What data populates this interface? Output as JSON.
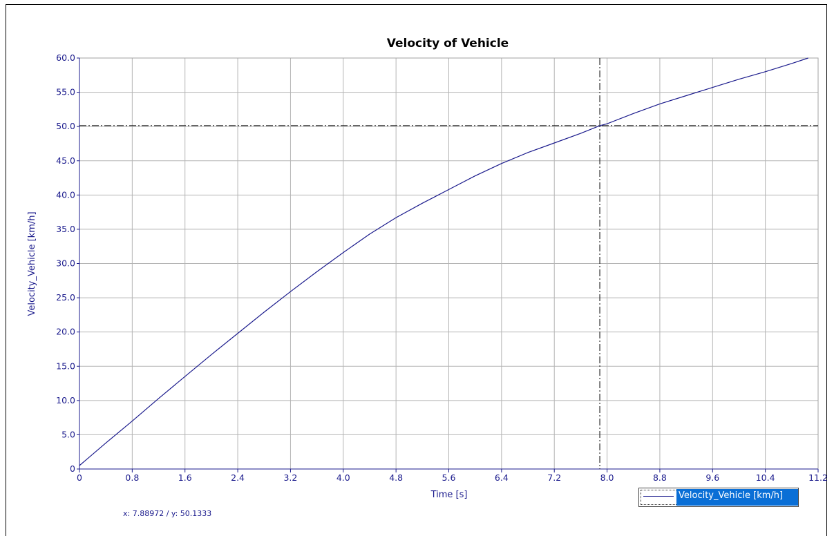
{
  "chart_data": {
    "type": "line",
    "title": "Velocity of Vehicle",
    "xlabel": "Time [s]",
    "ylabel": "Velocity_Vehicle [km/h]",
    "xlim": [
      0,
      11.2
    ],
    "ylim": [
      0,
      60
    ],
    "x_ticks": [
      "0",
      "0.8",
      "1.6",
      "2.4",
      "3.2",
      "4.0",
      "4.8",
      "5.6",
      "6.4",
      "7.2",
      "8.0",
      "8.8",
      "9.6",
      "10.4",
      "11.2"
    ],
    "y_ticks": [
      "0",
      "5.0",
      "10.0",
      "15.0",
      "20.0",
      "25.0",
      "30.0",
      "35.0",
      "40.0",
      "45.0",
      "50.0",
      "55.0",
      "60.0"
    ],
    "grid": true,
    "legend_position": "bottom-right",
    "series": [
      {
        "name": "Velocity_Vehicle [km/h]",
        "color": "#1a1a8c",
        "x": [
          0,
          0.4,
          0.8,
          1.2,
          1.6,
          2.0,
          2.4,
          2.8,
          3.2,
          3.6,
          4.0,
          4.4,
          4.8,
          5.2,
          5.6,
          6.0,
          6.4,
          6.8,
          7.2,
          7.6,
          7.89,
          8.0,
          8.4,
          8.8,
          9.2,
          9.6,
          10.0,
          10.4,
          10.8,
          11.05
        ],
        "y": [
          0.5,
          3.8,
          7.0,
          10.3,
          13.5,
          16.7,
          19.8,
          22.9,
          25.9,
          28.8,
          31.6,
          34.3,
          36.7,
          38.8,
          40.8,
          42.8,
          44.6,
          46.2,
          47.6,
          49.0,
          50.13,
          50.4,
          51.9,
          53.3,
          54.5,
          55.7,
          56.9,
          58.0,
          59.2,
          60.0
        ]
      }
    ],
    "crosshair": {
      "x": 7.88972,
      "y": 50.1333
    }
  },
  "cursor_readout": "x: 7.88972 / y: 50.1333"
}
